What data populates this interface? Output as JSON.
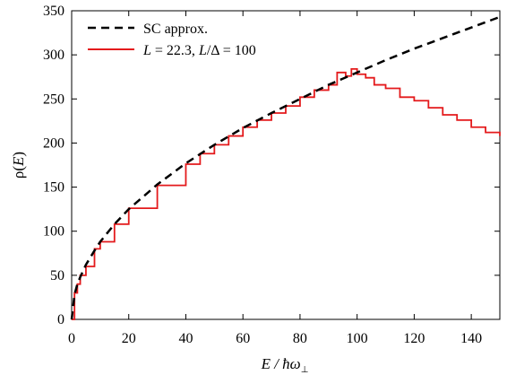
{
  "chart_data": {
    "type": "line",
    "xlabel_main": "E / ħω",
    "xlabel_sub": "⊥",
    "ylabel_main": "ρ(",
    "ylabel_var": "E",
    "ylabel_close": ")",
    "xlim": [
      0,
      150
    ],
    "ylim": [
      0,
      350
    ],
    "xticks": [
      0,
      20,
      40,
      60,
      80,
      100,
      120,
      140
    ],
    "yticks": [
      0,
      50,
      100,
      150,
      200,
      250,
      300,
      350
    ],
    "legend_position": "top-left",
    "grid": false,
    "series": [
      {
        "name": "SC approx.",
        "style": "dashed",
        "color": "#000000",
        "x": [
          0,
          1,
          2,
          3,
          5,
          8,
          10,
          15,
          20,
          30,
          40,
          50,
          60,
          70,
          80,
          90,
          100,
          110,
          120,
          130,
          140,
          150
        ],
        "y": [
          0,
          28,
          40,
          48,
          62,
          78,
          88,
          108,
          125,
          153,
          177,
          198,
          217,
          234,
          250,
          266,
          280,
          294,
          307,
          319,
          331,
          343
        ]
      },
      {
        "name_parts": [
          "L",
          " = 22.3, ",
          "L",
          "/Δ = 100"
        ],
        "style": "histogram",
        "color": "#e41a1c",
        "x": [
          0,
          1,
          2,
          3,
          5,
          8,
          10,
          15,
          20,
          30,
          40,
          45,
          50,
          55,
          60,
          65,
          70,
          75,
          80,
          85,
          90,
          93,
          96,
          98,
          100,
          103,
          106,
          110,
          115,
          120,
          125,
          130,
          135,
          140,
          145,
          150
        ],
        "y": [
          0,
          30,
          40,
          50,
          60,
          80,
          88,
          108,
          126,
          152,
          176,
          188,
          198,
          208,
          218,
          226,
          234,
          242,
          252,
          260,
          266,
          280,
          276,
          284,
          278,
          274,
          266,
          262,
          252,
          248,
          240,
          232,
          226,
          218,
          212,
          208
        ]
      }
    ]
  }
}
